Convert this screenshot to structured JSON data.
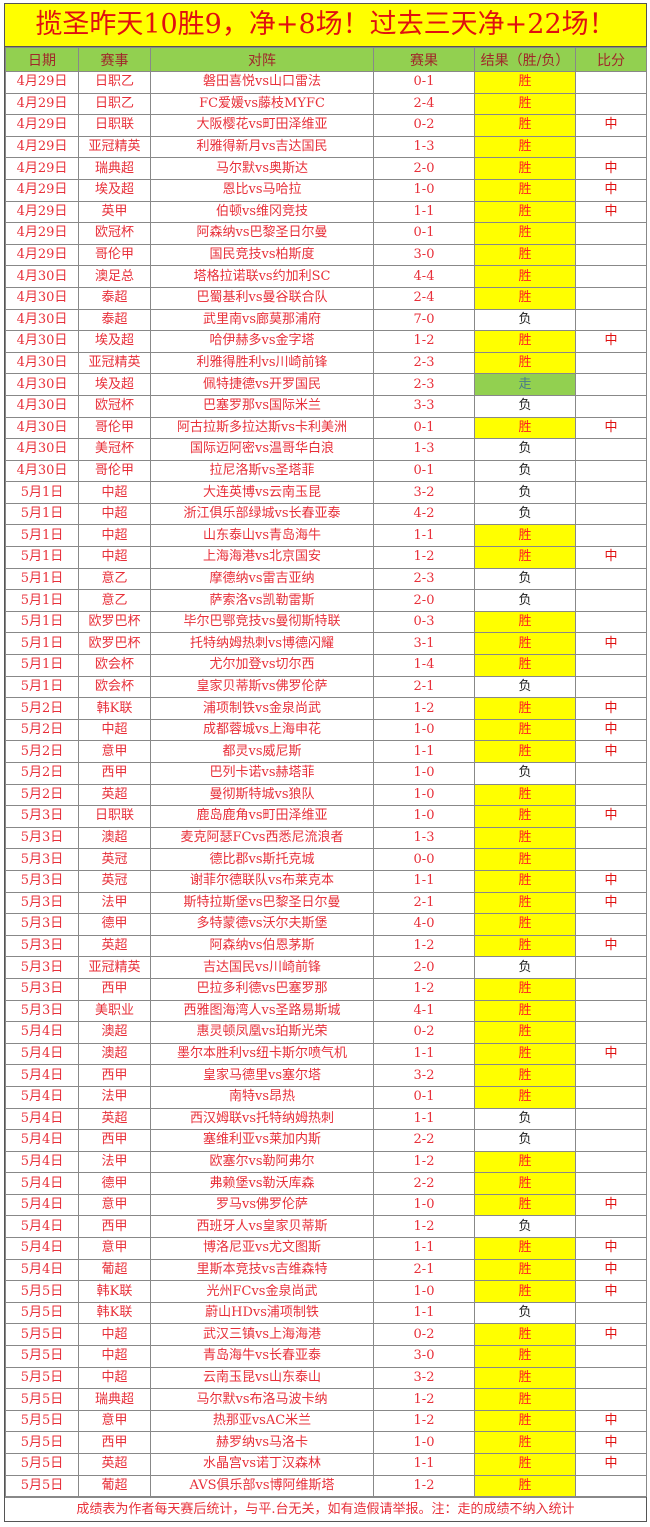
{
  "title": "揽圣昨天10胜9，净+8场！过去三天净+22场！",
  "headers": [
    "日期",
    "赛事",
    "对阵",
    "赛果",
    "结果（胜/负）",
    "比分"
  ],
  "colors": {
    "title_bg": "#ffff00",
    "title_text": "#e01010",
    "header_bg": "#92d050",
    "win_bg": "#ffff00",
    "push_bg": "#92d050",
    "text": "#e8303a"
  },
  "rows": [
    [
      "4月29日",
      "日职乙",
      "磐田喜悦vs山口雷法",
      "0-1",
      "胜",
      ""
    ],
    [
      "4月29日",
      "日职乙",
      "FC爱媛vs藤枝MYFC",
      "2-4",
      "胜",
      ""
    ],
    [
      "4月29日",
      "日职联",
      "大阪樱花vs町田泽维亚",
      "0-2",
      "胜",
      "中"
    ],
    [
      "4月29日",
      "亚冠精英",
      "利雅得新月vs吉达国民",
      "1-3",
      "胜",
      ""
    ],
    [
      "4月29日",
      "瑞典超",
      "马尔默vs奥斯达",
      "2-0",
      "胜",
      "中"
    ],
    [
      "4月29日",
      "埃及超",
      "恩比vs马哈拉",
      "1-0",
      "胜",
      "中"
    ],
    [
      "4月29日",
      "英甲",
      "伯顿vs维冈竞技",
      "1-1",
      "胜",
      "中"
    ],
    [
      "4月29日",
      "欧冠杯",
      "阿森纳vs巴黎圣日尔曼",
      "0-1",
      "胜",
      ""
    ],
    [
      "4月29日",
      "哥伦甲",
      "国民竞技vs柏斯度",
      "3-0",
      "胜",
      ""
    ],
    [
      "4月30日",
      "澳足总",
      "塔格拉诺联vs约加利SC",
      "4-4",
      "胜",
      ""
    ],
    [
      "4月30日",
      "泰超",
      "巴蜀基利vs曼谷联合队",
      "2-4",
      "胜",
      ""
    ],
    [
      "4月30日",
      "泰超",
      "武里南vs廊莫那浦府",
      "7-0",
      "负",
      ""
    ],
    [
      "4月30日",
      "埃及超",
      "哈伊赫多vs金字塔",
      "1-2",
      "胜",
      "中"
    ],
    [
      "4月30日",
      "亚冠精英",
      "利雅得胜利vs川崎前锋",
      "2-3",
      "胜",
      ""
    ],
    [
      "4月30日",
      "埃及超",
      "佩特捷德vs开罗国民",
      "2-3",
      "走",
      ""
    ],
    [
      "4月30日",
      "欧冠杯",
      "巴塞罗那vs国际米兰",
      "3-3",
      "负",
      ""
    ],
    [
      "4月30日",
      "哥伦甲",
      "阿古拉斯多拉达斯vs卡利美洲",
      "0-1",
      "胜",
      "中"
    ],
    [
      "4月30日",
      "美冠杯",
      "国际迈阿密vs温哥华白浪",
      "1-3",
      "负",
      ""
    ],
    [
      "4月30日",
      "哥伦甲",
      "拉尼洛斯vs圣塔菲",
      "0-1",
      "负",
      ""
    ],
    [
      "5月1日",
      "中超",
      "大连英博vs云南玉昆",
      "3-2",
      "负",
      ""
    ],
    [
      "5月1日",
      "中超",
      "浙江俱乐部绿城vs长春亚泰",
      "4-2",
      "负",
      ""
    ],
    [
      "5月1日",
      "中超",
      "山东泰山vs青岛海牛",
      "1-1",
      "胜",
      ""
    ],
    [
      "5月1日",
      "中超",
      "上海海港vs北京国安",
      "1-2",
      "胜",
      "中"
    ],
    [
      "5月1日",
      "意乙",
      "摩德纳vs雷吉亚纳",
      "2-3",
      "负",
      ""
    ],
    [
      "5月1日",
      "意乙",
      "萨索洛vs凯勒雷斯",
      "2-0",
      "负",
      ""
    ],
    [
      "5月1日",
      "欧罗巴杯",
      "毕尔巴鄂竞技vs曼彻斯特联",
      "0-3",
      "胜",
      ""
    ],
    [
      "5月1日",
      "欧罗巴杯",
      "托特纳姆热刺vs博德闪耀",
      "3-1",
      "胜",
      "中"
    ],
    [
      "5月1日",
      "欧会杯",
      "尤尔加登vs切尔西",
      "1-4",
      "胜",
      ""
    ],
    [
      "5月1日",
      "欧会杯",
      "皇家贝蒂斯vs佛罗伦萨",
      "2-1",
      "负",
      ""
    ],
    [
      "5月2日",
      "韩K联",
      "浦项制铁vs金泉尚武",
      "1-2",
      "胜",
      "中"
    ],
    [
      "5月2日",
      "中超",
      "成都蓉城vs上海申花",
      "1-0",
      "胜",
      "中"
    ],
    [
      "5月2日",
      "意甲",
      "都灵vs威尼斯",
      "1-1",
      "胜",
      "中"
    ],
    [
      "5月2日",
      "西甲",
      "巴列卡诺vs赫塔菲",
      "1-0",
      "负",
      ""
    ],
    [
      "5月2日",
      "英超",
      "曼彻斯特城vs狼队",
      "1-0",
      "胜",
      ""
    ],
    [
      "5月3日",
      "日职联",
      "鹿岛鹿角vs町田泽维亚",
      "1-0",
      "胜",
      "中"
    ],
    [
      "5月3日",
      "澳超",
      "麦克阿瑟FCvs西悉尼流浪者",
      "1-3",
      "胜",
      ""
    ],
    [
      "5月3日",
      "英冠",
      "德比郡vs斯托克城",
      "0-0",
      "胜",
      ""
    ],
    [
      "5月3日",
      "英冠",
      "谢菲尔德联队vs布莱克本",
      "1-1",
      "胜",
      "中"
    ],
    [
      "5月3日",
      "法甲",
      "斯特拉斯堡vs巴黎圣日尔曼",
      "2-1",
      "胜",
      "中"
    ],
    [
      "5月3日",
      "德甲",
      "多特蒙德vs沃尔夫斯堡",
      "4-0",
      "胜",
      ""
    ],
    [
      "5月3日",
      "英超",
      "阿森纳vs伯恩茅斯",
      "1-2",
      "胜",
      "中"
    ],
    [
      "5月3日",
      "亚冠精英",
      "吉达国民vs川崎前锋",
      "2-0",
      "负",
      ""
    ],
    [
      "5月3日",
      "西甲",
      "巴拉多利德vs巴塞罗那",
      "1-2",
      "胜",
      ""
    ],
    [
      "5月3日",
      "美职业",
      "西雅图海湾人vs圣路易斯城",
      "4-1",
      "胜",
      ""
    ],
    [
      "5月4日",
      "澳超",
      "惠灵顿凤凰vs珀斯光荣",
      "0-2",
      "胜",
      ""
    ],
    [
      "5月4日",
      "澳超",
      "墨尔本胜利vs纽卡斯尔喷气机",
      "1-1",
      "胜",
      "中"
    ],
    [
      "5月4日",
      "西甲",
      "皇家马德里vs塞尔塔",
      "3-2",
      "胜",
      ""
    ],
    [
      "5月4日",
      "法甲",
      "南特vs昂热",
      "0-1",
      "胜",
      ""
    ],
    [
      "5月4日",
      "英超",
      "西汉姆联vs托特纳姆热刺",
      "1-1",
      "负",
      ""
    ],
    [
      "5月4日",
      "西甲",
      "塞维利亚vs莱加内斯",
      "2-2",
      "负",
      ""
    ],
    [
      "5月4日",
      "法甲",
      "欧塞尔vs勒阿弗尔",
      "1-2",
      "胜",
      ""
    ],
    [
      "5月4日",
      "德甲",
      "弗赖堡vs勒沃库森",
      "2-2",
      "胜",
      ""
    ],
    [
      "5月4日",
      "意甲",
      "罗马vs佛罗伦萨",
      "1-0",
      "胜",
      "中"
    ],
    [
      "5月4日",
      "西甲",
      "西班牙人vs皇家贝蒂斯",
      "1-2",
      "负",
      ""
    ],
    [
      "5月4日",
      "意甲",
      "博洛尼亚vs尤文图斯",
      "1-1",
      "胜",
      "中"
    ],
    [
      "5月4日",
      "葡超",
      "里斯本竞技vs吉维森特",
      "2-1",
      "胜",
      "中"
    ],
    [
      "5月5日",
      "韩K联",
      "光州FCvs金泉尚武",
      "1-0",
      "胜",
      "中"
    ],
    [
      "5月5日",
      "韩K联",
      "蔚山HDvs浦项制铁",
      "1-1",
      "负",
      ""
    ],
    [
      "5月5日",
      "中超",
      "武汉三镇vs上海海港",
      "0-2",
      "胜",
      "中"
    ],
    [
      "5月5日",
      "中超",
      "青岛海牛vs长春亚泰",
      "3-0",
      "胜",
      ""
    ],
    [
      "5月5日",
      "中超",
      "云南玉昆vs山东泰山",
      "3-2",
      "胜",
      ""
    ],
    [
      "5月5日",
      "瑞典超",
      "马尔默vs布洛马波卡纳",
      "1-2",
      "胜",
      ""
    ],
    [
      "5月5日",
      "意甲",
      "热那亚vsAC米兰",
      "1-2",
      "胜",
      "中"
    ],
    [
      "5月5日",
      "西甲",
      "赫罗纳vs马洛卡",
      "1-0",
      "胜",
      "中"
    ],
    [
      "5月5日",
      "英超",
      "水晶宫vs诺丁汉森林",
      "1-1",
      "胜",
      "中"
    ],
    [
      "5月5日",
      "葡超",
      "AVS俱乐部vs博阿维斯塔",
      "1-2",
      "胜",
      ""
    ]
  ],
  "footer": "成绩表为作者每天赛后统计，与平.台无关，如有造假请举报。注：走的成绩不纳入统计"
}
